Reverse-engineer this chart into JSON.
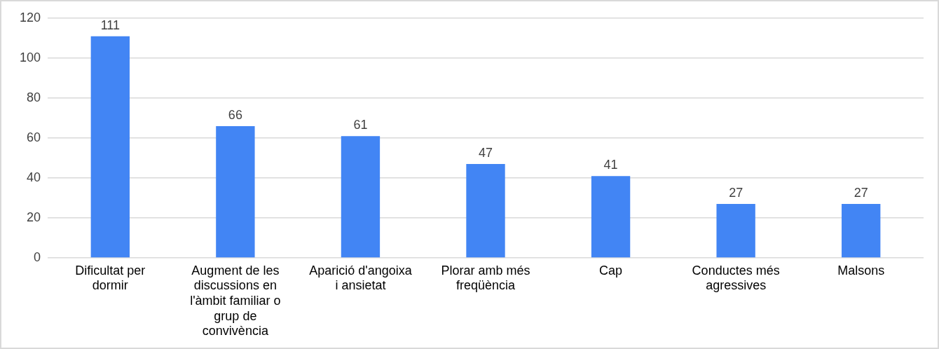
{
  "chart_data": {
    "type": "bar",
    "categories": [
      "Dificultat per dormir",
      "Augment de les discussions en l'àmbit familiar o grup de convivència",
      "Aparició d'angoixa i ansietat",
      "Plorar amb més freqüència",
      "Cap",
      "Conductes més agressives",
      "Malsons"
    ],
    "values": [
      111,
      66,
      61,
      47,
      41,
      27,
      27
    ],
    "color": "#4285f4",
    "ylim": [
      0,
      120
    ],
    "yticks": [
      0,
      20,
      40,
      60,
      80,
      100,
      120
    ],
    "grid": "y",
    "legend": false,
    "data_labels": true
  }
}
